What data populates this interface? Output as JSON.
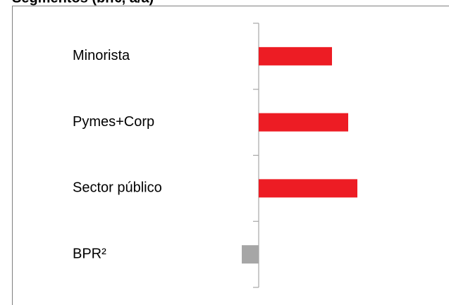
{
  "chart_data": {
    "type": "hbar",
    "title": "Segmentos (bn€, a/a)",
    "categories": [
      "Minorista",
      "Pymes+Corp",
      "Sector público",
      "BPR²"
    ],
    "values": [
      104,
      127,
      140,
      -24
    ],
    "colors": [
      "#ed1c24",
      "#ed1c24",
      "#ed1c24",
      "#a6a6a6"
    ],
    "xlim": [
      -350,
      270
    ]
  }
}
